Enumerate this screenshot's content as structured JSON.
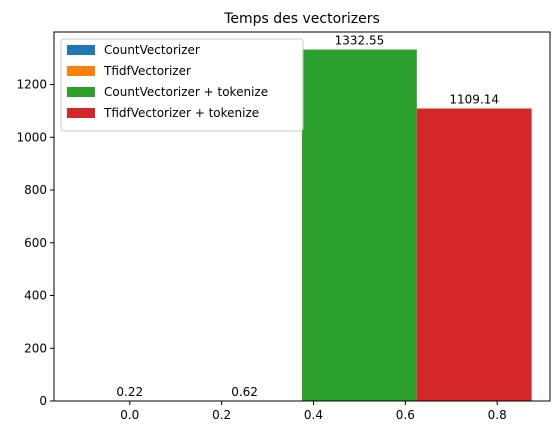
{
  "chart_data": {
    "type": "bar",
    "title": "Temps des vectorizers",
    "xlabel": "",
    "ylabel": "",
    "xlim": [
      -0.165,
      0.915
    ],
    "ylim": [
      0,
      1399.2
    ],
    "x_ticks": [
      "0.0",
      "0.2",
      "0.4",
      "0.6",
      "0.8"
    ],
    "y_ticks": [
      "0",
      "200",
      "400",
      "600",
      "800",
      "1000",
      "1200"
    ],
    "grid": false,
    "legend_position": "top-left",
    "series": [
      {
        "name": "CountVectorizer",
        "x": 0.0,
        "value": 0.22,
        "label": "0.22",
        "color": "#1f77b4"
      },
      {
        "name": "TfidfVectorizer",
        "x": 0.25,
        "value": 0.62,
        "label": "0.62",
        "color": "#ff7f0e"
      },
      {
        "name": "CountVectorizer + tokenize",
        "x": 0.5,
        "value": 1332.55,
        "label": "1332.55",
        "color": "#2ca02c"
      },
      {
        "name": "TfidfVectorizer + tokenize",
        "x": 0.75,
        "value": 1109.14,
        "label": "1109.14",
        "color": "#d62728"
      }
    ],
    "bar_width": 0.25
  }
}
